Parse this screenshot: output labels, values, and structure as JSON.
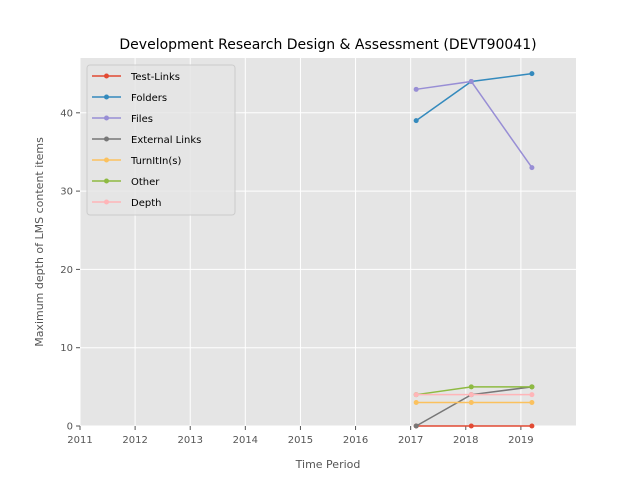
{
  "chart_data": {
    "type": "line",
    "title": "Development Research Design & Assessment (DEVT90041)",
    "xlabel": "Time Period",
    "ylabel": "Maximum depth of LMS content items",
    "xlim": [
      2011,
      2020
    ],
    "ylim": [
      0,
      47
    ],
    "xticks": [
      "2011",
      "2012",
      "2013",
      "2014",
      "2015",
      "2016",
      "2017",
      "2018",
      "2019"
    ],
    "yticks": [
      "0",
      "10",
      "20",
      "30",
      "40"
    ],
    "grid": true,
    "legend": "top-left",
    "series": [
      {
        "name": "Test-Links",
        "color": "#e24a33",
        "x": [
          2017.1,
          2018.1,
          2019.2
        ],
        "y": [
          0,
          0,
          0
        ]
      },
      {
        "name": "Folders",
        "color": "#348abd",
        "x": [
          2017.1,
          2018.1,
          2019.2
        ],
        "y": [
          39,
          44,
          45
        ]
      },
      {
        "name": "Files",
        "color": "#988ed5",
        "x": [
          2017.1,
          2018.1,
          2019.2
        ],
        "y": [
          43,
          44,
          33
        ]
      },
      {
        "name": "External Links",
        "color": "#777777",
        "x": [
          2017.1,
          2018.1,
          2019.2
        ],
        "y": [
          0,
          4,
          5
        ]
      },
      {
        "name": "TurnItIn(s)",
        "color": "#fbc15e",
        "x": [
          2017.1,
          2018.1,
          2019.2
        ],
        "y": [
          3,
          3,
          3
        ]
      },
      {
        "name": "Other",
        "color": "#8eba42",
        "x": [
          2017.1,
          2018.1,
          2019.2
        ],
        "y": [
          4,
          5,
          5
        ]
      },
      {
        "name": "Depth",
        "color": "#ffb5b8",
        "x": [
          2017.1,
          2018.1,
          2019.2
        ],
        "y": [
          4,
          4,
          4
        ]
      }
    ]
  }
}
